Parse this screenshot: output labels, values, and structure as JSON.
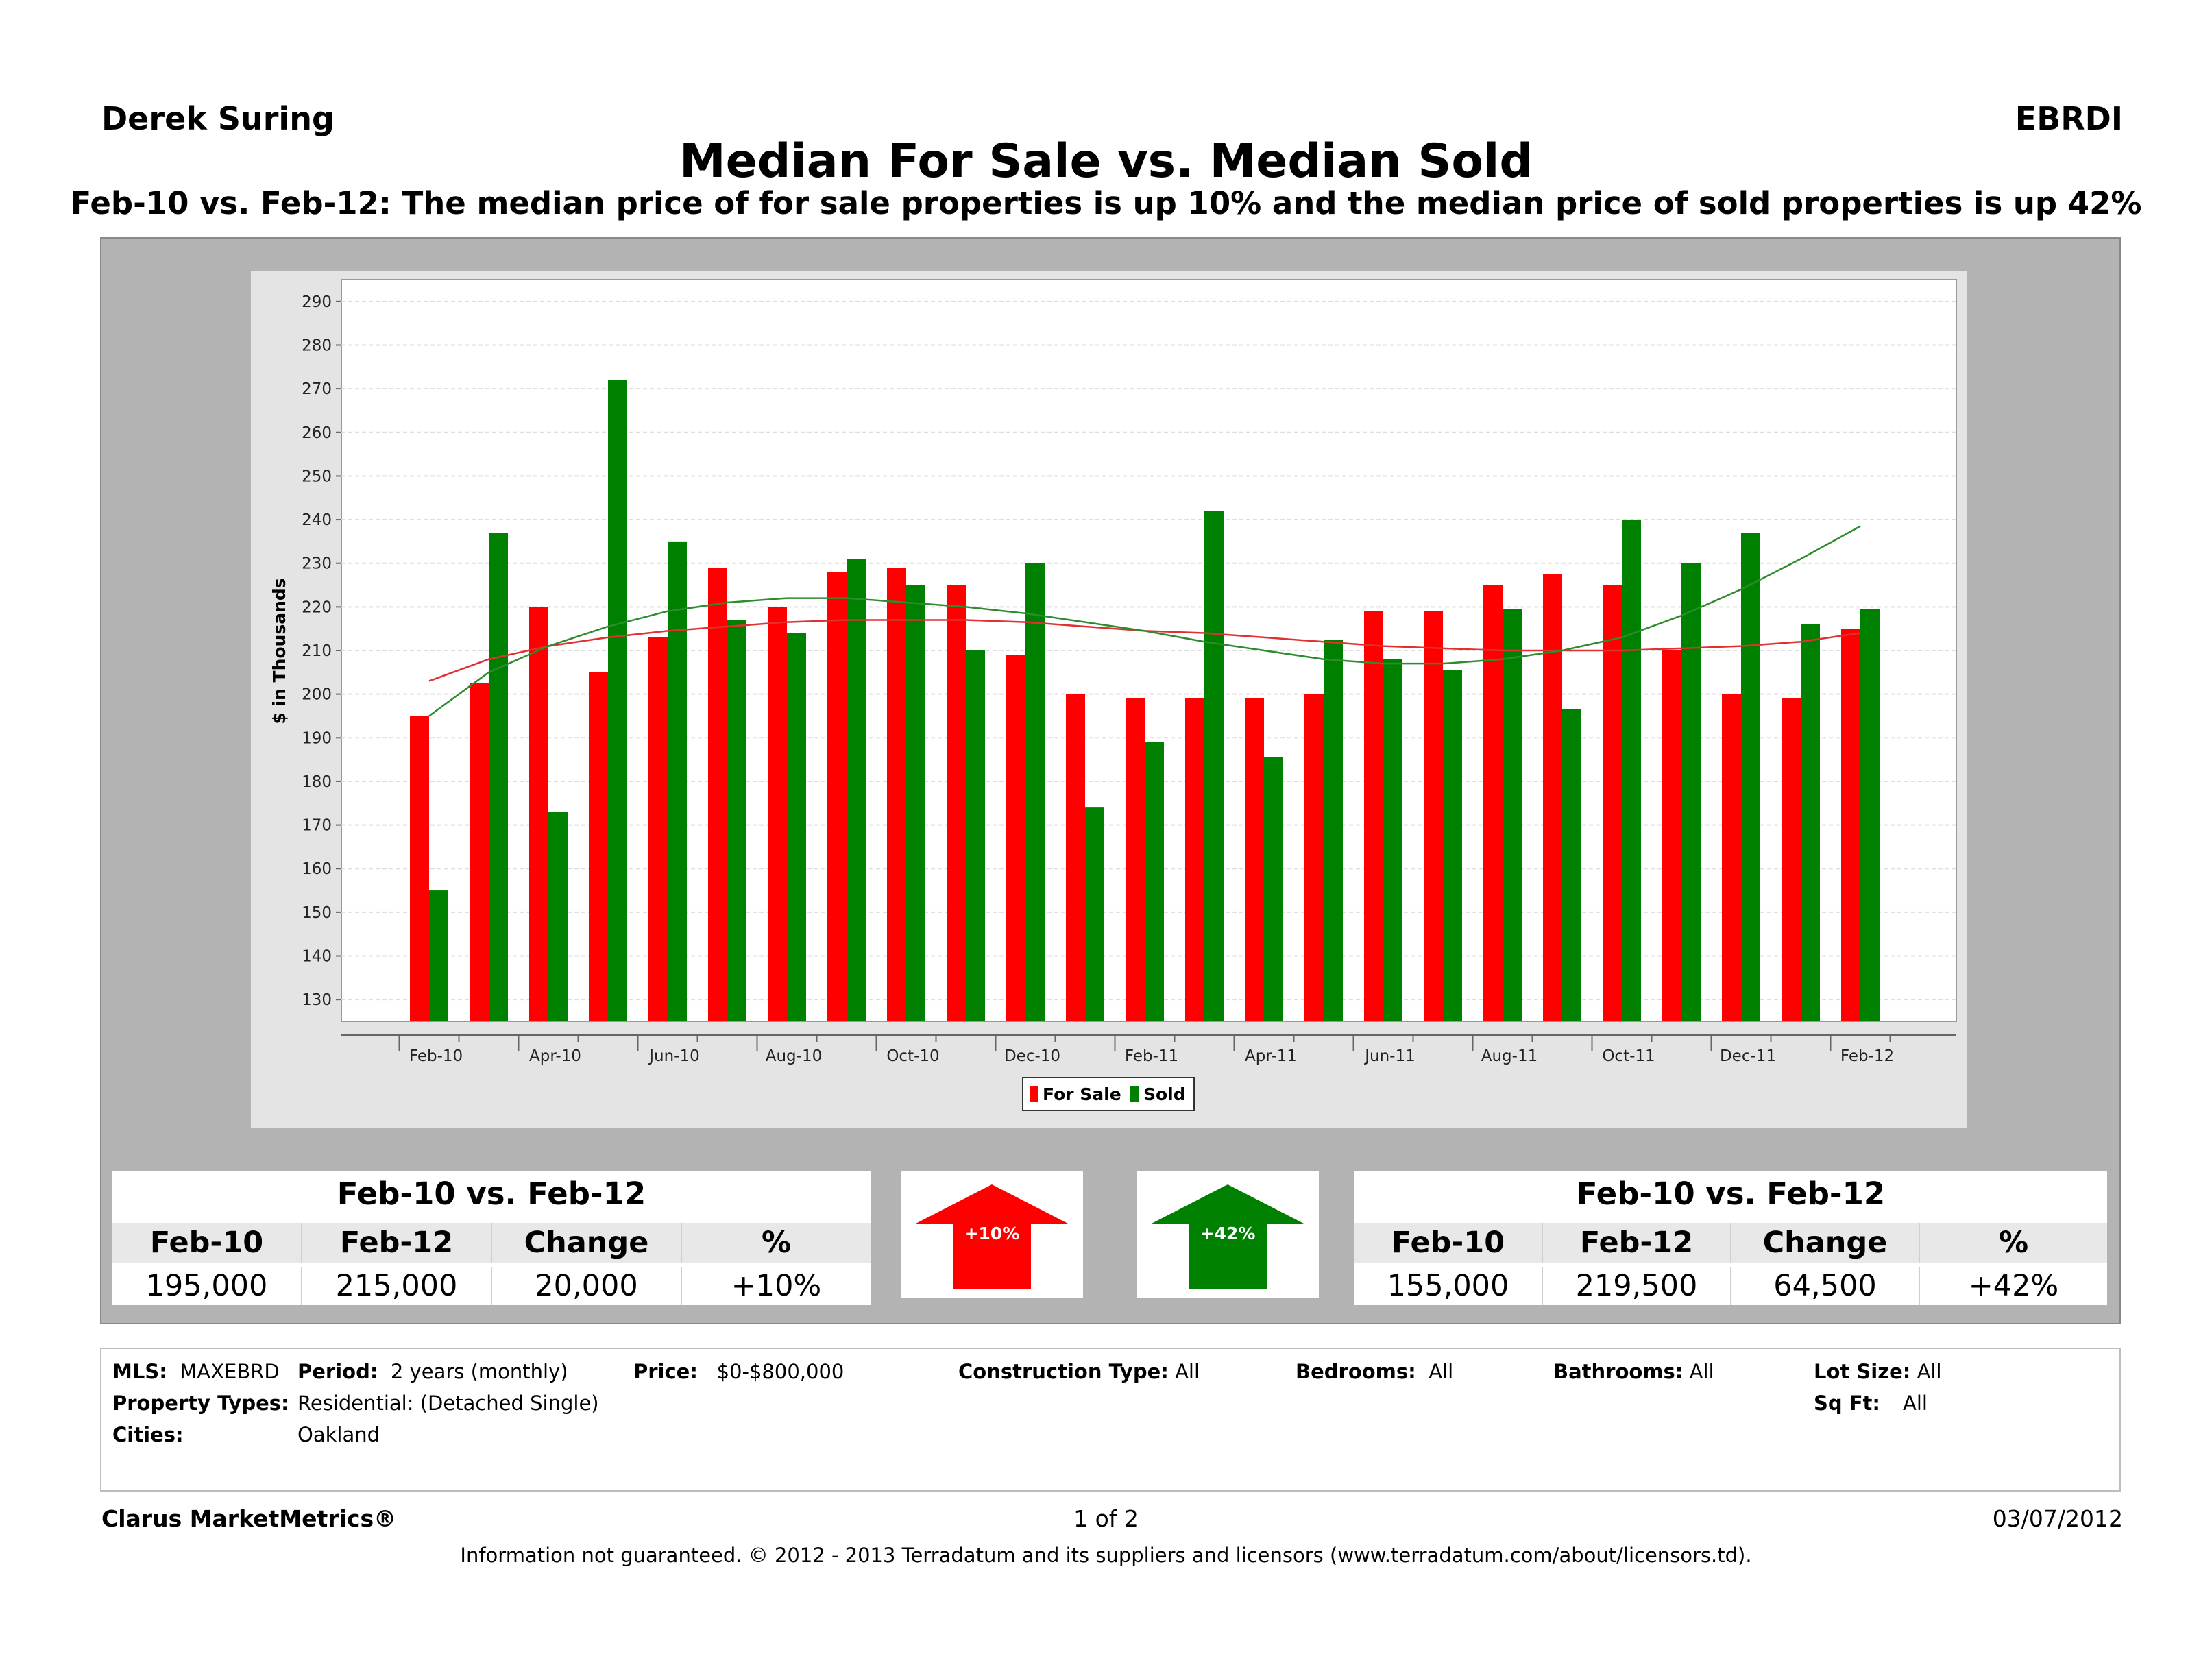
{
  "header": {
    "agent": "Derek Suring",
    "board": "EBRDI",
    "title": "Median For Sale vs. Median Sold",
    "subtitle": "Feb-10 vs. Feb-12:  The median price of for sale properties is up 10% and the median price of sold properties is up 42%"
  },
  "chart_data": {
    "type": "bar",
    "ylabel": "$ in Thousands",
    "ylim": [
      125,
      295
    ],
    "yticks": [
      130,
      140,
      150,
      160,
      170,
      180,
      190,
      200,
      210,
      220,
      230,
      240,
      250,
      260,
      270,
      280,
      290
    ],
    "grid": true,
    "legend_position": "bottom",
    "categories": [
      "Feb-10",
      "Mar-10",
      "Apr-10",
      "May-10",
      "Jun-10",
      "Jul-10",
      "Aug-10",
      "Sep-10",
      "Oct-10",
      "Nov-10",
      "Dec-10",
      "Jan-11",
      "Feb-11",
      "Mar-11",
      "Apr-11",
      "May-11",
      "Jun-11",
      "Jul-11",
      "Aug-11",
      "Sep-11",
      "Oct-11",
      "Nov-11",
      "Dec-11",
      "Jan-12",
      "Feb-12"
    ],
    "tick_labels": [
      "Feb-10",
      "Apr-10",
      "Jun-10",
      "Aug-10",
      "Oct-10",
      "Dec-10",
      "Feb-11",
      "Apr-11",
      "Jun-11",
      "Aug-11",
      "Oct-11",
      "Dec-11",
      "Feb-12"
    ],
    "series": [
      {
        "name": "For Sale",
        "color": "#ff0000",
        "values": [
          195,
          202.5,
          220,
          205,
          213,
          229,
          220,
          228,
          229,
          225,
          209,
          200,
          199,
          199,
          199,
          200,
          219,
          219,
          225,
          227.5,
          225,
          210,
          200,
          199,
          215
        ],
        "trend": [
          203,
          208,
          211,
          213,
          214.5,
          215.5,
          216.5,
          217,
          217,
          217,
          216.5,
          215.5,
          214.5,
          214,
          213,
          212,
          211,
          210.5,
          210,
          210,
          210,
          210.5,
          211,
          212,
          214
        ]
      },
      {
        "name": "Sold",
        "color": "#008000",
        "values": [
          155,
          237,
          173,
          272,
          235,
          217,
          214,
          231,
          225,
          210,
          230,
          174,
          189,
          242,
          185.5,
          212.5,
          208,
          205.5,
          219.5,
          196.5,
          240,
          230,
          237,
          216,
          219.5
        ],
        "trend": [
          195,
          205,
          211,
          215.5,
          219,
          221,
          222,
          222,
          221,
          220,
          218.5,
          216.5,
          214.5,
          212,
          210,
          208,
          207,
          207,
          208,
          210,
          213,
          218,
          224,
          231,
          238.5
        ]
      }
    ]
  },
  "for_sale_stats": {
    "heading": "Feb-10 vs. Feb-12",
    "cols": [
      "Feb-10",
      "Feb-12",
      "Change",
      "%"
    ],
    "values": [
      "195,000",
      "215,000",
      "20,000",
      "+10%"
    ],
    "arrow_label": "+10%",
    "color": "#ff0000"
  },
  "sold_stats": {
    "heading": "Feb-10 vs. Feb-12",
    "cols": [
      "Feb-10",
      "Feb-12",
      "Change",
      "%"
    ],
    "values": [
      "155,000",
      "219,500",
      "64,500",
      "+42%"
    ],
    "arrow_label": "+42%",
    "color": "#008000"
  },
  "criteria": {
    "mls_label": "MLS:",
    "mls_value": "MAXEBRD",
    "period_label": "Period:",
    "period_value": "2 years (monthly)",
    "price_label": "Price:",
    "price_value": "$0-$800,000",
    "construction_label": "Construction Type:",
    "construction_value": "All",
    "bedrooms_label": "Bedrooms:",
    "bedrooms_value": "All",
    "bathrooms_label": "Bathrooms:",
    "bathrooms_value": "All",
    "lotsize_label": "Lot Size:",
    "lotsize_value": "All",
    "ptypes_label": "Property Types:",
    "ptypes_value": "Residential: (Detached Single)",
    "sqft_label": "Sq Ft:",
    "sqft_value": "All",
    "cities_label": "Cities:",
    "cities_value": "Oakland"
  },
  "footer": {
    "brand": "Clarus MarketMetrics®",
    "page": "1 of 2",
    "date": "03/07/2012",
    "disclaimer": "Information not guaranteed.  © 2012 - 2013 Terradatum and its suppliers and licensors (www.terradatum.com/about/licensors.td)."
  }
}
